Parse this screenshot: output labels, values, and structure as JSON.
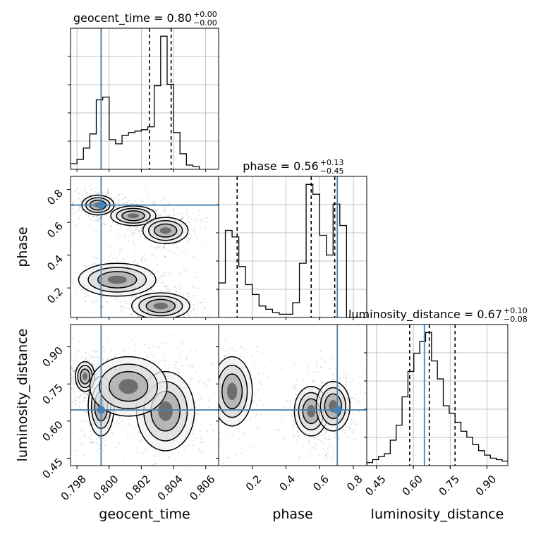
{
  "figure": {
    "type": "corner-plot",
    "parameters": [
      "geocent_time",
      "phase",
      "luminosity_distance"
    ],
    "truth_color": "#4682b4",
    "hist_color": "#000000"
  },
  "chart_data": [
    {
      "type": "histogram",
      "panel": "geocent_time-marginal",
      "title_param": "geocent_time",
      "title_value": "0.80",
      "title_plus": "+0.00",
      "title_minus": "−0.00",
      "xlim": [
        0.7976,
        0.8068
      ],
      "xticks": [
        0.798,
        0.8,
        0.802,
        0.804,
        0.806
      ],
      "xticklabels": [
        "0.798",
        "0.800",
        "0.802",
        "0.804",
        "0.806"
      ],
      "xlabel": "geocent_time",
      "bin_edges": [
        0.7976,
        0.798,
        0.7984,
        0.7988,
        0.7992,
        0.7996,
        0.8,
        0.8004,
        0.8008,
        0.8012,
        0.8016,
        0.802,
        0.8024,
        0.8028,
        0.8032,
        0.8036,
        0.804,
        0.8044,
        0.8048,
        0.8052,
        0.8056
      ],
      "counts": [
        8,
        14,
        30,
        50,
        98,
        102,
        42,
        36,
        48,
        52,
        54,
        56,
        60,
        118,
        188,
        120,
        52,
        22,
        6,
        4
      ],
      "quantile_lines": [
        0.7995,
        0.8025,
        0.80385
      ],
      "truth": 0.7995,
      "grid": true
    },
    {
      "type": "histogram",
      "panel": "phase-marginal",
      "title_param": "phase",
      "title_value": "0.56",
      "title_plus": "+0.13",
      "title_minus": "−0.45",
      "xlim": [
        0.0,
        0.88
      ],
      "xticks": [
        0.2,
        0.4,
        0.6,
        0.8
      ],
      "xticklabels": [
        "0.2",
        "0.4",
        "0.6",
        "0.8"
      ],
      "xlabel": "phase",
      "bin_edges": [
        0.0,
        0.04,
        0.08,
        0.12,
        0.16,
        0.2,
        0.24,
        0.28,
        0.32,
        0.36,
        0.4,
        0.44,
        0.48,
        0.52,
        0.56,
        0.6,
        0.64,
        0.68,
        0.72,
        0.76,
        0.8,
        0.84,
        0.88
      ],
      "counts": [
        42,
        106,
        98,
        62,
        40,
        28,
        14,
        10,
        6,
        4,
        4,
        18,
        66,
        162,
        150,
        100,
        76,
        138,
        112,
        0,
        0,
        0
      ],
      "quantile_lines": [
        0.11,
        0.55,
        0.69
      ],
      "truth": 0.705,
      "grid": true
    },
    {
      "type": "histogram",
      "panel": "luminosity_distance-marginal",
      "title_param": "luminosity_distance",
      "title_value": "0.67",
      "title_plus": "+0.10",
      "title_minus": "−0.08",
      "xlim": [
        0.41,
        0.985
      ],
      "xticks": [
        0.45,
        0.6,
        0.75,
        0.9
      ],
      "xticklabels": [
        "0.45",
        "0.60",
        "0.75",
        "0.90"
      ],
      "xlabel": "luminosity_distance",
      "bin_edges": [
        0.41,
        0.434,
        0.458,
        0.482,
        0.506,
        0.53,
        0.554,
        0.578,
        0.602,
        0.626,
        0.65,
        0.674,
        0.698,
        0.722,
        0.746,
        0.77,
        0.794,
        0.818,
        0.842,
        0.866,
        0.89,
        0.914,
        0.938,
        0.962,
        0.986
      ],
      "counts": [
        4,
        8,
        12,
        16,
        34,
        54,
        92,
        126,
        150,
        166,
        178,
        140,
        116,
        80,
        70,
        58,
        46,
        38,
        28,
        20,
        14,
        10,
        8,
        6
      ],
      "quantile_lines": [
        0.585,
        0.665,
        0.77
      ],
      "truth": 0.645,
      "grid": true
    },
    {
      "type": "contour-2d",
      "panel": "phase-vs-geocent_time",
      "xlim": [
        0.7976,
        0.8068
      ],
      "ylim": [
        0.02,
        0.88
      ],
      "yticks": [
        0.2,
        0.4,
        0.6,
        0.8
      ],
      "yticklabels": [
        "0.2",
        "0.4",
        "0.6",
        "0.8"
      ],
      "ylabel": "phase",
      "truth": [
        0.7995,
        0.705
      ],
      "clusters": [
        {
          "x": 0.7993,
          "y": 0.705,
          "sx": 0.0005,
          "sy": 0.03
        },
        {
          "x": 0.8015,
          "y": 0.64,
          "sx": 0.0007,
          "sy": 0.03
        },
        {
          "x": 0.8035,
          "y": 0.55,
          "sx": 0.0007,
          "sy": 0.04
        },
        {
          "x": 0.8005,
          "y": 0.25,
          "sx": 0.0012,
          "sy": 0.05
        },
        {
          "x": 0.8032,
          "y": 0.09,
          "sx": 0.0009,
          "sy": 0.04
        }
      ]
    },
    {
      "type": "contour-2d",
      "panel": "luminosity_distance-vs-geocent_time",
      "xlim": [
        0.7976,
        0.8068
      ],
      "ylim": [
        0.42,
        0.99
      ],
      "yticks": [
        0.45,
        0.6,
        0.75,
        0.9
      ],
      "yticklabels": [
        "0.45",
        "0.60",
        "0.75",
        "0.90"
      ],
      "ylabel": "luminosity_distance",
      "truth": [
        0.7995,
        0.645
      ],
      "clusters": [
        {
          "x": 0.7995,
          "y": 0.66,
          "sx": 0.0004,
          "sy": 0.06
        },
        {
          "x": 0.7985,
          "y": 0.78,
          "sx": 0.0003,
          "sy": 0.03
        },
        {
          "x": 0.8035,
          "y": 0.64,
          "sx": 0.0009,
          "sy": 0.08
        },
        {
          "x": 0.8012,
          "y": 0.74,
          "sx": 0.0012,
          "sy": 0.06
        }
      ]
    },
    {
      "type": "contour-2d",
      "panel": "luminosity_distance-vs-phase",
      "xlim": [
        0.0,
        0.88
      ],
      "ylim": [
        0.42,
        0.99
      ],
      "truth": [
        0.705,
        0.645
      ],
      "clusters": [
        {
          "x": 0.08,
          "y": 0.72,
          "sx": 0.06,
          "sy": 0.07
        },
        {
          "x": 0.55,
          "y": 0.64,
          "sx": 0.05,
          "sy": 0.05
        },
        {
          "x": 0.68,
          "y": 0.66,
          "sx": 0.05,
          "sy": 0.05
        }
      ]
    }
  ]
}
